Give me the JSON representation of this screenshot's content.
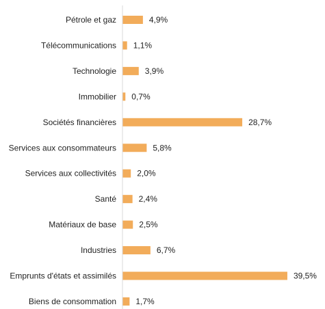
{
  "chart_data": {
    "type": "bar",
    "orientation": "horizontal",
    "categories": [
      "Pétrole et gaz",
      "Télécommunications",
      "Technologie",
      "Immobilier",
      "Sociétés financières",
      "Services aux consommateurs",
      "Services aux collectivités",
      "Santé",
      "Matériaux de base",
      "Industries",
      "Emprunts d'états et assimilés",
      "Biens de consommation"
    ],
    "values": [
      4.9,
      1.1,
      3.9,
      0.7,
      28.7,
      5.8,
      2.0,
      2.4,
      2.5,
      6.7,
      39.5,
      1.7
    ],
    "value_labels": [
      "4,9%",
      "1,1%",
      "3,9%",
      "0,7%",
      "28,7%",
      "5,8%",
      "2,0%",
      "2,4%",
      "2,5%",
      "6,7%",
      "39,5%",
      "1,7%"
    ],
    "title": "",
    "xlabel": "",
    "ylabel": "",
    "xlim": [
      0,
      40
    ],
    "grid": false,
    "legend": "none",
    "colors": {
      "bar": "#F2AC5A",
      "axis": "#d9d9d9",
      "text": "#222222"
    }
  }
}
